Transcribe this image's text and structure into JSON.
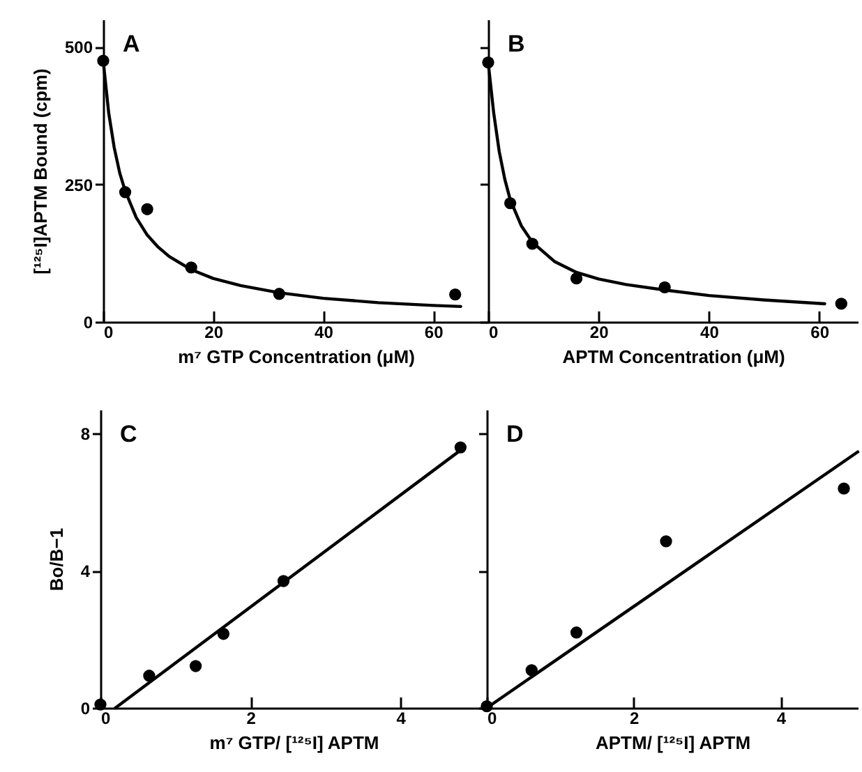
{
  "chart_data": [
    {
      "type": "scatter",
      "xlabel": "m⁷ GTP Concentration (μM)",
      "ylabel": "[¹²⁵I]APTM Bound (cpm)",
      "annotations": [
        "A"
      ],
      "xlim": [
        0,
        70
      ],
      "xticks": [
        0,
        20,
        40,
        60
      ],
      "ylim": [
        0,
        550
      ],
      "yticks": [
        0,
        250,
        500
      ],
      "series": [
        {
          "marker": "circle",
          "color": "#000000",
          "x": [
            0,
            4,
            8,
            16,
            32,
            64
          ],
          "values": [
            475,
            236,
            205,
            99,
            51,
            50
          ]
        },
        {
          "type": "line",
          "color": "#000000",
          "line_style": "solid",
          "x": [
            0,
            1,
            2,
            3,
            4,
            6,
            8,
            10,
            12,
            16,
            20,
            25,
            32,
            40,
            50,
            60,
            65
          ],
          "values": [
            475,
            380,
            317,
            271,
            238,
            190,
            158,
            136,
            119,
            95,
            79,
            66,
            53,
            43,
            35,
            30,
            28
          ]
        }
      ]
    },
    {
      "type": "scatter",
      "xlabel": "APTM Concentration (μM)",
      "annotations": [
        "B"
      ],
      "xlim": [
        0,
        67
      ],
      "xticks": [
        0,
        20,
        40,
        60
      ],
      "ylim": [
        0,
        550
      ],
      "yticks": [
        0,
        250,
        500
      ],
      "tick_labels": "x",
      "series": [
        {
          "marker": "circle",
          "color": "#000000",
          "x": [
            0,
            4,
            8,
            16,
            32,
            64
          ],
          "values": [
            472,
            216,
            142,
            79,
            63,
            33
          ]
        },
        {
          "type": "line",
          "color": "#000000",
          "line_style": "solid",
          "x": [
            0,
            1,
            2,
            3,
            4,
            6,
            8,
            12,
            16,
            20,
            25,
            32,
            40,
            50,
            61
          ],
          "values": [
            472,
            380,
            310,
            260,
            222,
            175,
            145,
            110,
            90,
            78,
            68,
            58,
            48,
            40,
            33
          ]
        }
      ]
    },
    {
      "type": "scatter",
      "xlabel": "m⁷ GTP/ [¹²⁵I] APTM",
      "ylabel": "Bo/B−1",
      "annotations": [
        "C"
      ],
      "xlim": [
        0,
        5.15
      ],
      "xticks": [
        0,
        2,
        4
      ],
      "ylim": [
        0,
        8.7
      ],
      "yticks": [
        0,
        4,
        8
      ],
      "series": [
        {
          "marker": "circle",
          "color": "#000000",
          "x": [
            0,
            0.65,
            1.27,
            1.64,
            2.44,
            4.8
          ],
          "values": [
            0.1,
            0.94,
            1.22,
            2.16,
            3.7,
            7.6
          ]
        },
        {
          "type": "line",
          "color": "#000000",
          "line_style": "solid",
          "x": [
            0.2,
            4.85
          ],
          "values": [
            0,
            7.6
          ]
        }
      ]
    },
    {
      "type": "scatter",
      "xlabel": "APTM/ [¹²⁵I] APTM",
      "annotations": [
        "D"
      ],
      "xlim": [
        0,
        5.05
      ],
      "xticks": [
        0,
        2,
        4
      ],
      "ylim": [
        0,
        8.7
      ],
      "yticks": [
        0,
        4,
        8
      ],
      "tick_labels": "x",
      "series": [
        {
          "marker": "circle",
          "color": "#000000",
          "x": [
            0,
            0.61,
            1.22,
            2.44,
            4.86
          ],
          "values": [
            0.05,
            1.1,
            2.2,
            4.86,
            6.4
          ]
        },
        {
          "type": "line",
          "color": "#000000",
          "line_style": "solid",
          "x": [
            0,
            5.05
          ],
          "values": [
            0,
            7.47
          ]
        }
      ]
    }
  ]
}
